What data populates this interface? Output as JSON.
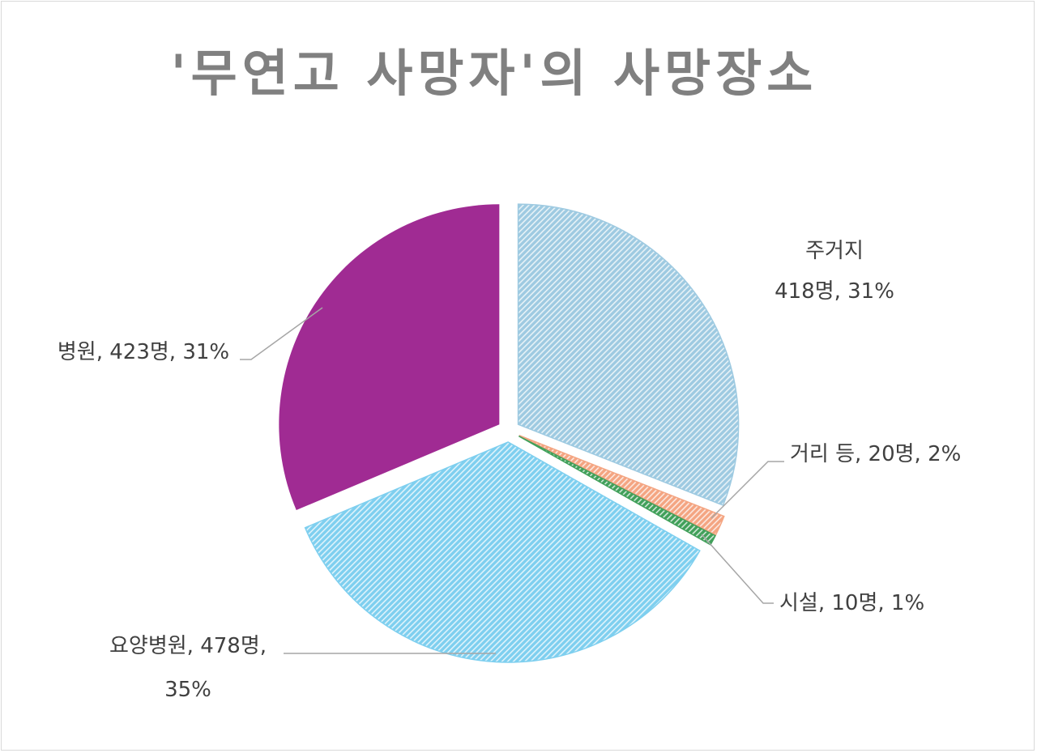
{
  "chart_data": {
    "type": "pie",
    "title": "'무연고 사망자'의 사망장소",
    "slices": [
      {
        "category": "주거지",
        "value": 418,
        "percent_label": "31%",
        "label_lines": [
          "주거지",
          "418명, 31%"
        ],
        "color": "#9ecae1",
        "pattern": true
      },
      {
        "category": "거리 등",
        "value": 20,
        "percent_label": "2%",
        "label_lines": [
          "거리 등, 20명, 2%"
        ],
        "color": "#f4a582",
        "pattern": true
      },
      {
        "category": "시설",
        "value": 10,
        "percent_label": "1%",
        "label_lines": [
          "시설, 10명, 1%"
        ],
        "color": "#41a05a",
        "pattern": true
      },
      {
        "category": "요양병원",
        "value": 478,
        "percent_label": "35%",
        "label_lines": [
          "요양병원, 478명,",
          "35%"
        ],
        "color": "#7ecfef",
        "pattern": true
      },
      {
        "category": "병원",
        "value": 423,
        "percent_label": "31%",
        "label_lines": [
          "병원, 423명, 31%"
        ],
        "color": "#a02b93",
        "pattern": false
      }
    ],
    "legend": "none",
    "exploded": true
  }
}
